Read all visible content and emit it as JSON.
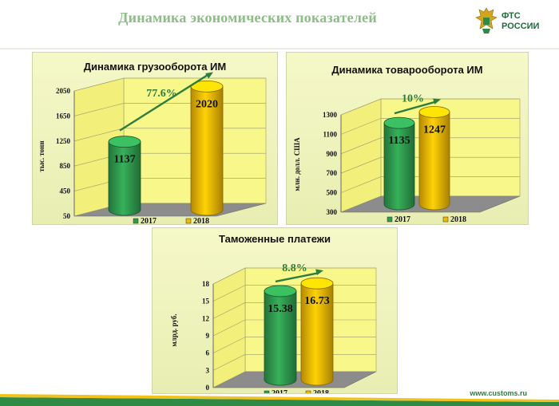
{
  "header": {
    "title": "Динамика экономических показателей",
    "logo_line1": "ФТС",
    "logo_line2": "РОССИИ"
  },
  "footer": {
    "url": "www.customs.ru"
  },
  "colors": {
    "green": "#2f9a4e",
    "gold": "#f2b705",
    "arrow": "#2e7d3e"
  },
  "chart_data": [
    {
      "type": "bar",
      "title": "Динамика грузооборота  ИМ",
      "ylabel": "тыс. тонн",
      "categories": [
        "2017",
        "2018"
      ],
      "values": [
        1137,
        2020
      ],
      "value_labels": [
        "1137",
        "2020"
      ],
      "yticks": [
        "50",
        "450",
        "850",
        "1250",
        "1650",
        "2050"
      ],
      "ylim": [
        50,
        2050
      ],
      "growth_label": "77.6%",
      "grid": true,
      "legend": "bottom"
    },
    {
      "type": "bar",
      "title": "Динамика товарооборота ИМ",
      "ylabel": "млн. долл. США",
      "categories": [
        "2017",
        "2018"
      ],
      "values": [
        1135,
        1247
      ],
      "value_labels": [
        "1135",
        "1247"
      ],
      "yticks": [
        "300",
        "500",
        "700",
        "900",
        "1100",
        "1300"
      ],
      "ylim": [
        300,
        1300
      ],
      "growth_label": "10%",
      "grid": true,
      "legend": "bottom"
    },
    {
      "type": "bar",
      "title": "Таможенные платежи",
      "ylabel": "млрд. руб.",
      "categories": [
        "2017",
        "2018"
      ],
      "values": [
        15.38,
        16.73
      ],
      "value_labels": [
        "15.38",
        "16.73"
      ],
      "yticks": [
        "0",
        "3",
        "6",
        "9",
        "12",
        "15",
        "18"
      ],
      "ylim": [
        0,
        18
      ],
      "growth_label": "8.8%",
      "grid": true,
      "legend": "bottom"
    }
  ]
}
